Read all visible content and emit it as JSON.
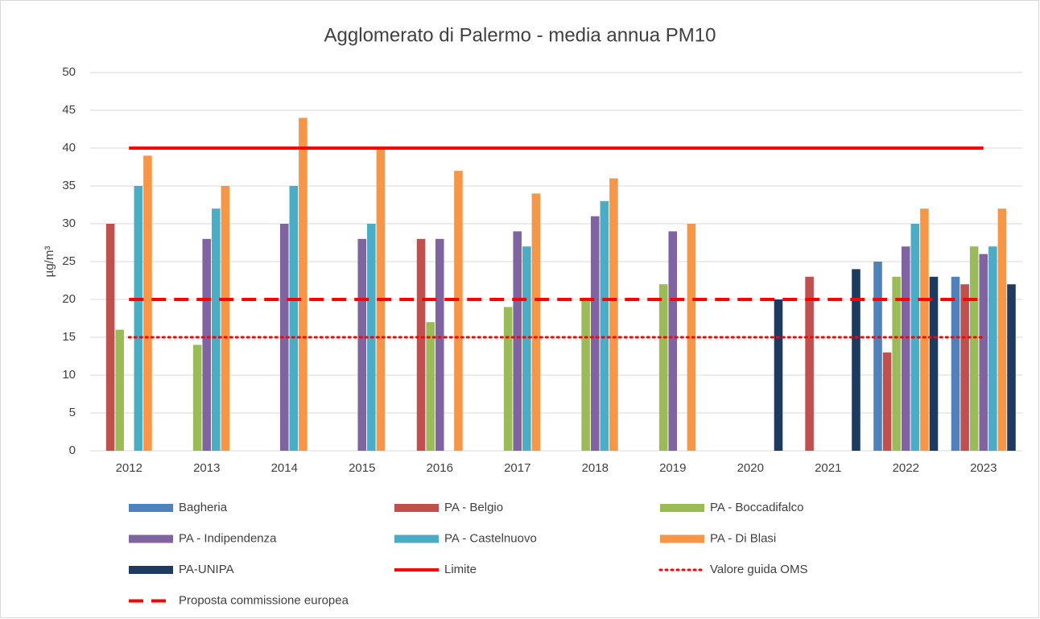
{
  "chart_data": {
    "type": "bar",
    "title": "Agglomerato di Palermo - media annua PM10",
    "y_label": "µg/m³",
    "categories": [
      "2012",
      "2013",
      "2014",
      "2015",
      "2016",
      "2017",
      "2018",
      "2019",
      "2020",
      "2021",
      "2022",
      "2023"
    ],
    "ylim": [
      0,
      50
    ],
    "yticks": [
      0,
      5,
      10,
      15,
      20,
      25,
      30,
      35,
      40,
      45,
      50
    ],
    "grid": true,
    "legend": "bottom",
    "series": [
      {
        "name": "Bagheria",
        "color": "#4f81bd",
        "values": [
          null,
          null,
          null,
          null,
          null,
          null,
          null,
          null,
          null,
          null,
          25,
          23
        ]
      },
      {
        "name": "PA - Belgio",
        "color": "#c0504d",
        "values": [
          30,
          null,
          null,
          null,
          28,
          null,
          null,
          null,
          null,
          23,
          13,
          22
        ]
      },
      {
        "name": "PA - Boccadifalco",
        "color": "#9bbb59",
        "values": [
          16,
          14,
          null,
          null,
          17,
          19,
          20,
          22,
          null,
          null,
          23,
          27
        ]
      },
      {
        "name": "PA - Indipendenza",
        "color": "#8064a2",
        "values": [
          null,
          28,
          30,
          28,
          28,
          29,
          31,
          29,
          null,
          null,
          27,
          26
        ]
      },
      {
        "name": "PA - Castelnuovo",
        "color": "#4bacc6",
        "values": [
          35,
          32,
          35,
          30,
          null,
          27,
          33,
          null,
          null,
          null,
          30,
          27
        ]
      },
      {
        "name": "PA - Di Blasi",
        "color": "#f79646",
        "values": [
          39,
          35,
          44,
          40,
          37,
          34,
          36,
          30,
          null,
          null,
          32,
          32
        ]
      },
      {
        "name": "PA-UNIPA",
        "color": "#1f3a60",
        "values": [
          null,
          null,
          null,
          null,
          null,
          null,
          null,
          null,
          20,
          24,
          23,
          22
        ]
      },
      {
        "name": "Limite",
        "color": "#ff0000",
        "type": "line",
        "line_style": "solid",
        "values": [
          40,
          40,
          40,
          40,
          40,
          40,
          40,
          40,
          40,
          40,
          40,
          40
        ]
      },
      {
        "name": "Valore guida OMS",
        "color": "#ff0000",
        "type": "line",
        "line_style": "dotted",
        "values": [
          15,
          15,
          15,
          15,
          15,
          15,
          15,
          15,
          15,
          15,
          15,
          15
        ]
      },
      {
        "name": "Proposta commissione europea",
        "color": "#ff0000",
        "type": "line",
        "line_style": "dashed",
        "values": [
          20,
          20,
          20,
          20,
          20,
          20,
          20,
          20,
          20,
          20,
          20,
          20
        ]
      }
    ]
  }
}
